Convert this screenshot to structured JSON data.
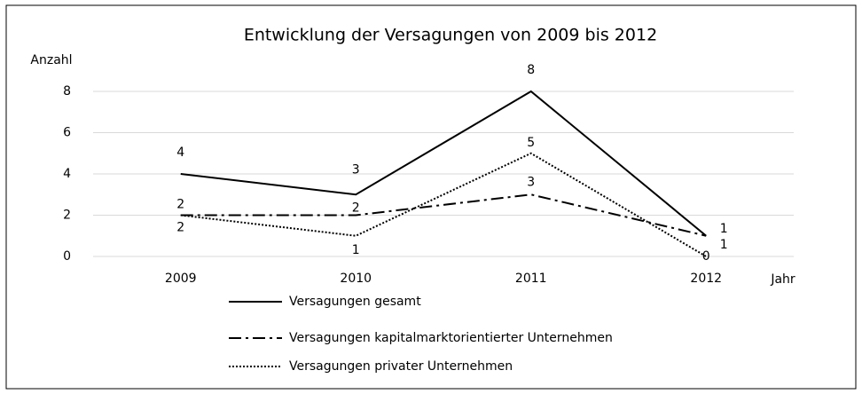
{
  "chart_data": {
    "type": "line",
    "title": "Entwicklung der Versagungen von 2009 bis 2012",
    "y_label": "Anzahl",
    "x_label": "Jahr",
    "categories": [
      "2009",
      "2010",
      "2011",
      "2012"
    ],
    "series": [
      {
        "name": "Versagungen gesamt",
        "color": "#000000",
        "style": "solid",
        "values": [
          4,
          3,
          8,
          1
        ]
      },
      {
        "name": "Versagungen kapitalmarktorientierter Unternehmen",
        "color": "#000000",
        "style": "dashdot",
        "values": [
          2,
          2,
          3,
          1
        ]
      },
      {
        "name": "Versagungen privater Unternehmen",
        "color": "#000000",
        "style": "dotted",
        "values": [
          2,
          1,
          5,
          0
        ]
      }
    ],
    "ylim": [
      0,
      8
    ],
    "yticks": [
      0,
      2,
      4,
      6,
      8
    ],
    "grid": true
  }
}
